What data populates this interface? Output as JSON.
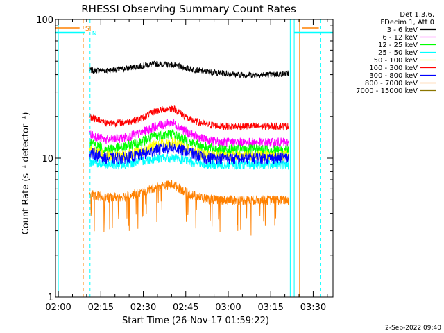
{
  "chart_data": {
    "type": "line",
    "title": "RHESSI Observing Summary Count Rates",
    "xlabel": "Start Time (26-Nov-17 01:59:22)",
    "ylabel": "Count Rate (s⁻¹ detector⁻¹)",
    "yscale": "log",
    "ylim": [
      1,
      100
    ],
    "xlim_minutes": [
      -1,
      97
    ],
    "x_ticks": [
      {
        "label": "02:00",
        "min": 0
      },
      {
        "label": "02:15",
        "min": 15
      },
      {
        "label": "02:30",
        "min": 30
      },
      {
        "label": "02:45",
        "min": 45
      },
      {
        "label": "03:00",
        "min": 60
      },
      {
        "label": "03:15",
        "min": 75
      },
      {
        "label": "03:30",
        "min": 90
      }
    ],
    "y_ticks": [
      {
        "label": "1",
        "value": 1
      },
      {
        "label": "10",
        "value": 10
      },
      {
        "label": "100",
        "value": 100
      }
    ],
    "legend_header": [
      "Det 1,3,6,",
      "FDecim 1, Att 0"
    ],
    "legend_position": "right",
    "data_window_minutes": [
      11,
      81.5
    ],
    "series": [
      {
        "name": "3 - 6 keV",
        "color": "#000000",
        "level": [
          43,
          43,
          44,
          46,
          48,
          47,
          44,
          42,
          41,
          40,
          40,
          40,
          41
        ]
      },
      {
        "name": "6 - 12 keV",
        "color": "#ff00ff",
        "level": [
          15,
          13.5,
          14,
          15,
          17,
          18,
          15,
          13.5,
          13,
          13,
          13,
          13,
          13
        ]
      },
      {
        "name": "12 - 25 keV",
        "color": "#00ff00",
        "level": [
          13,
          11.5,
          12,
          13,
          14.5,
          15,
          13,
          12,
          11.5,
          11.5,
          11.5,
          11.5,
          11.5
        ]
      },
      {
        "name": "25 - 50 keV",
        "color": "#00ffff",
        "level": [
          9.5,
          9,
          9,
          9.5,
          10,
          10,
          9.5,
          9,
          9,
          9,
          9,
          9,
          9
        ]
      },
      {
        "name": "50 - 100 keV",
        "color": "#ffff00",
        "level": [
          11.5,
          10.5,
          10.5,
          11,
          12.5,
          13,
          11.5,
          10.5,
          10.5,
          10.5,
          10.5,
          10.5,
          10.5
        ]
      },
      {
        "name": "100 - 300 keV",
        "color": "#ff0000",
        "level": [
          20,
          18,
          18,
          19,
          22,
          23,
          19,
          17.5,
          17,
          17,
          17,
          17,
          17
        ]
      },
      {
        "name": "300 - 800 keV",
        "color": "#0000ff",
        "level": [
          11,
          10,
          10,
          10.5,
          11.5,
          12,
          11,
          10,
          10,
          10,
          10,
          10,
          10
        ]
      },
      {
        "name": "800 - 7000 keV",
        "color": "#ff8000",
        "level": [
          5.5,
          5.2,
          5.3,
          5.6,
          6.2,
          6.5,
          5.5,
          5.1,
          5.0,
          5.0,
          5.0,
          5.0,
          5.0
        ]
      },
      {
        "name": "7000 - 15000 keV",
        "color": "#8b7500",
        "level": []
      }
    ],
    "flags": [
      {
        "label": "SI",
        "color": "#ff8000"
      },
      {
        "label": "N",
        "color": "#00ffff"
      }
    ],
    "footer": "2-Sep-2022 09:40"
  }
}
